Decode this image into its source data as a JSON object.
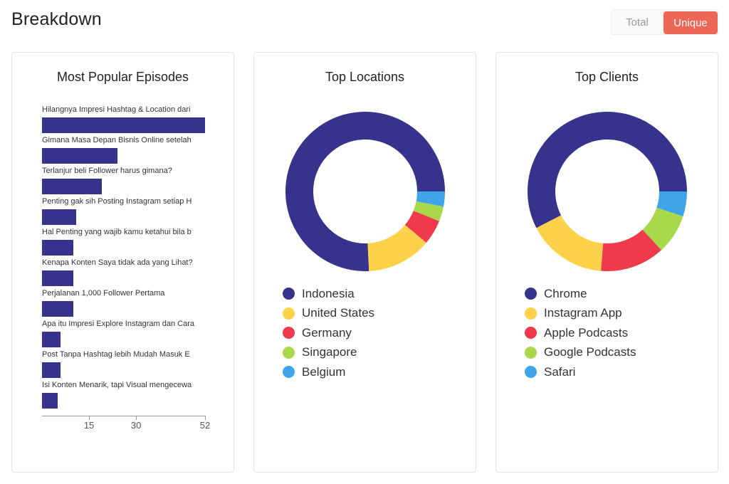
{
  "header": {
    "title": "Breakdown"
  },
  "toggle": {
    "total_label": "Total",
    "unique_label": "Unique",
    "selected": "Unique"
  },
  "colors": {
    "accent": "#ee6655",
    "bar": "#37338c"
  },
  "chart_data": [
    {
      "type": "bar",
      "orientation": "horizontal",
      "title": "Most Popular Episodes",
      "categories": [
        "Hilangnya Impresi Hashtag & Location dari",
        "Gimana Masa Depan Bisnis Online setelah",
        "Terlanjur beli Follower harus gimana?",
        "Penting gak sih Posting Instagram setiap H",
        "Hal Penting yang wajib kamu ketahui bila b",
        "Kenapa Konten Saya tidak ada yang Lihat?",
        "Perjalanan 1,000 Follower Pertama",
        "Apa itu Impresi Explore Instagram dan Cara",
        "Post Tanpa Hashtag lebih Mudah Masuk E",
        "Isi Konten Menarik, tapi Visual mengecewa"
      ],
      "values": [
        52,
        24,
        19,
        11,
        10,
        10,
        10,
        6,
        6,
        5
      ],
      "xlim": [
        0,
        52
      ],
      "xticks": [
        "15",
        "30",
        "52"
      ],
      "xtick_values": [
        15,
        30,
        52
      ],
      "bar_color": "#37338c"
    },
    {
      "type": "pie",
      "donut": true,
      "title": "Top Locations",
      "labels": [
        "Indonesia",
        "United States",
        "Germany",
        "Singapore",
        "Belgium"
      ],
      "values": [
        75,
        13,
        5,
        3,
        3
      ],
      "colors": [
        "#37338c",
        "#fdd24a",
        "#ee3a4b",
        "#a9d84a",
        "#3fa4e8"
      ],
      "legend": "bottom"
    },
    {
      "type": "pie",
      "donut": true,
      "title": "Top Clients",
      "labels": [
        "Chrome",
        "Instagram App",
        "Apple Podcasts",
        "Google Podcasts",
        "Safari"
      ],
      "values": [
        57,
        16,
        13,
        8,
        5
      ],
      "colors": [
        "#37338c",
        "#fdd24a",
        "#ee3a4b",
        "#a9d84a",
        "#3fa4e8"
      ],
      "legend": "bottom"
    }
  ]
}
